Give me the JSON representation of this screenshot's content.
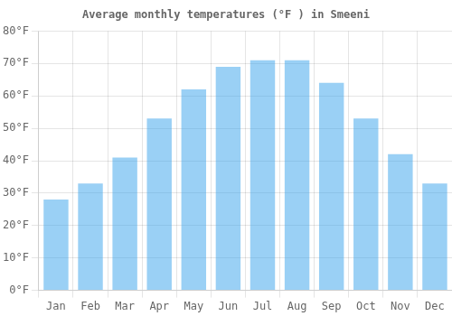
{
  "chart_data": {
    "type": "bar",
    "title": "Average monthly temperatures (°F ) in Smeeni",
    "categories": [
      "Jan",
      "Feb",
      "Mar",
      "Apr",
      "May",
      "Jun",
      "Jul",
      "Aug",
      "Sep",
      "Oct",
      "Nov",
      "Dec"
    ],
    "values": [
      28,
      33,
      41,
      53,
      62,
      69,
      71,
      71,
      64,
      53,
      42,
      33
    ],
    "ylim": [
      0,
      80
    ],
    "yticks": [
      {
        "value": 0,
        "label": "0°F"
      },
      {
        "value": 10,
        "label": "10°F"
      },
      {
        "value": 20,
        "label": "20°F"
      },
      {
        "value": 30,
        "label": "30°F"
      },
      {
        "value": 40,
        "label": "40°F"
      },
      {
        "value": 50,
        "label": "50°F"
      },
      {
        "value": 60,
        "label": "60°F"
      },
      {
        "value": 70,
        "label": "70°F"
      },
      {
        "value": 80,
        "label": "80°F"
      }
    ],
    "grid": true
  }
}
